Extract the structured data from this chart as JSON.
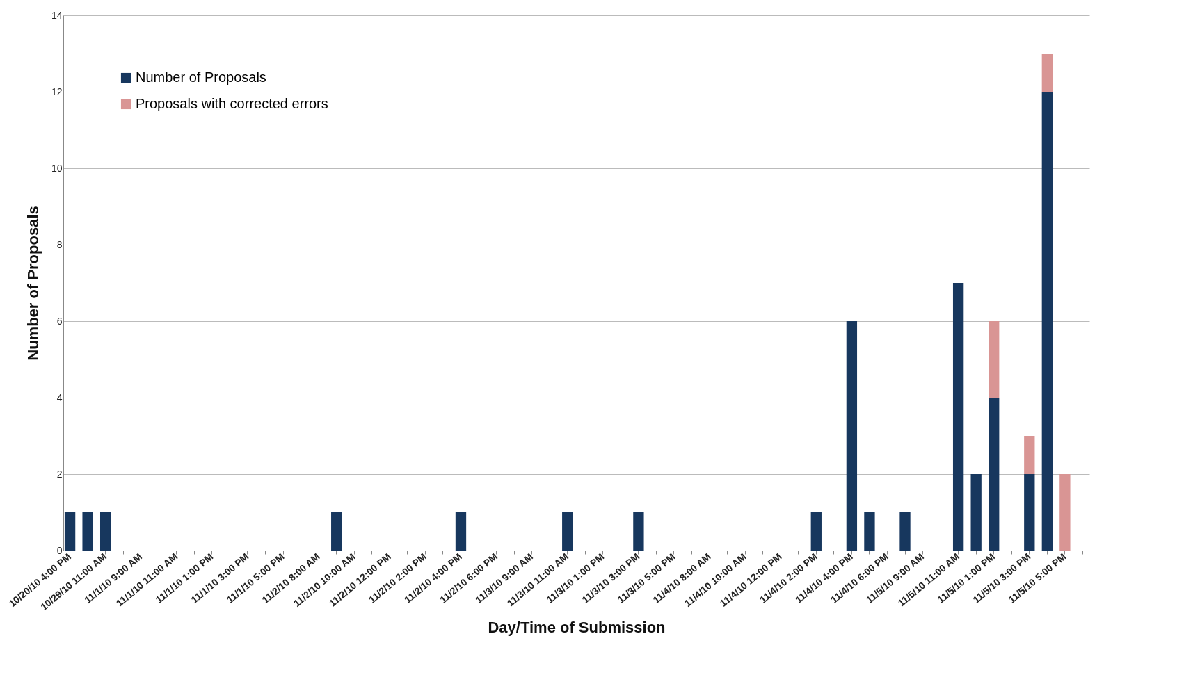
{
  "chart_data": {
    "type": "bar",
    "stacked": true,
    "xlabel": "Day/Time of Submission",
    "ylabel": "Number of Proposals",
    "categories": [
      "10/20/10 4:00 PM",
      null,
      "10/29/10 11:00 AM",
      null,
      "11/1/10 9:00 AM",
      null,
      "11/1/10 11:00 AM",
      null,
      "11/1/10 1:00 PM",
      null,
      "11/1/10 3:00 PM",
      null,
      "11/1/10 5:00 PM",
      null,
      "11/2/10 8:00 AM",
      null,
      "11/2/10 10:00 AM",
      null,
      "11/2/10 12:00 PM",
      null,
      "11/2/10 2:00 PM",
      null,
      "11/2/10 4:00 PM",
      null,
      "11/2/10 6:00 PM",
      null,
      "11/3/10 9:00 AM",
      null,
      "11/3/10 11:00 AM",
      null,
      "11/3/10 1:00 PM",
      null,
      "11/3/10 3:00 PM",
      null,
      "11/3/10 5:00 PM",
      null,
      "11/4/10 8:00 AM",
      null,
      "11/4/10 10:00 AM",
      null,
      "11/4/10 12:00 PM",
      null,
      "11/4/10 2:00 PM",
      null,
      "11/4/10 4:00 PM",
      null,
      "11/4/10 6:00 PM",
      null,
      "11/5/10 9:00 AM",
      null,
      "11/5/10 11:00 AM",
      null,
      "11/5/10 1:00 PM",
      null,
      "11/5/10 3:00 PM",
      null,
      "11/5/10 5:00 PM",
      null
    ],
    "series": [
      {
        "name": "Number of Proposals",
        "color": "#17375e",
        "values": [
          1,
          1,
          1,
          0,
          0,
          0,
          0,
          0,
          0,
          0,
          0,
          0,
          0,
          0,
          0,
          1,
          0,
          0,
          0,
          0,
          0,
          0,
          1,
          0,
          0,
          0,
          0,
          0,
          1,
          0,
          0,
          0,
          1,
          0,
          0,
          0,
          0,
          0,
          0,
          0,
          0,
          0,
          1,
          0,
          6,
          1,
          0,
          1,
          0,
          0,
          7,
          2,
          4,
          0,
          2,
          12,
          0,
          0
        ]
      },
      {
        "name": "Proposals with corrected errors",
        "color": "#d99594",
        "values": [
          0,
          0,
          0,
          0,
          0,
          0,
          0,
          0,
          0,
          0,
          0,
          0,
          0,
          0,
          0,
          0,
          0,
          0,
          0,
          0,
          0,
          0,
          0,
          0,
          0,
          0,
          0,
          0,
          0,
          0,
          0,
          0,
          0,
          0,
          0,
          0,
          0,
          0,
          0,
          0,
          0,
          0,
          0,
          0,
          0,
          0,
          0,
          0,
          0,
          0,
          0,
          0,
          2,
          0,
          1,
          1,
          2,
          0
        ]
      }
    ],
    "ylim": [
      0,
      14
    ],
    "yticks": [
      0,
      2,
      4,
      6,
      8,
      10,
      12,
      14
    ],
    "grid": "y",
    "legend": "top left"
  }
}
